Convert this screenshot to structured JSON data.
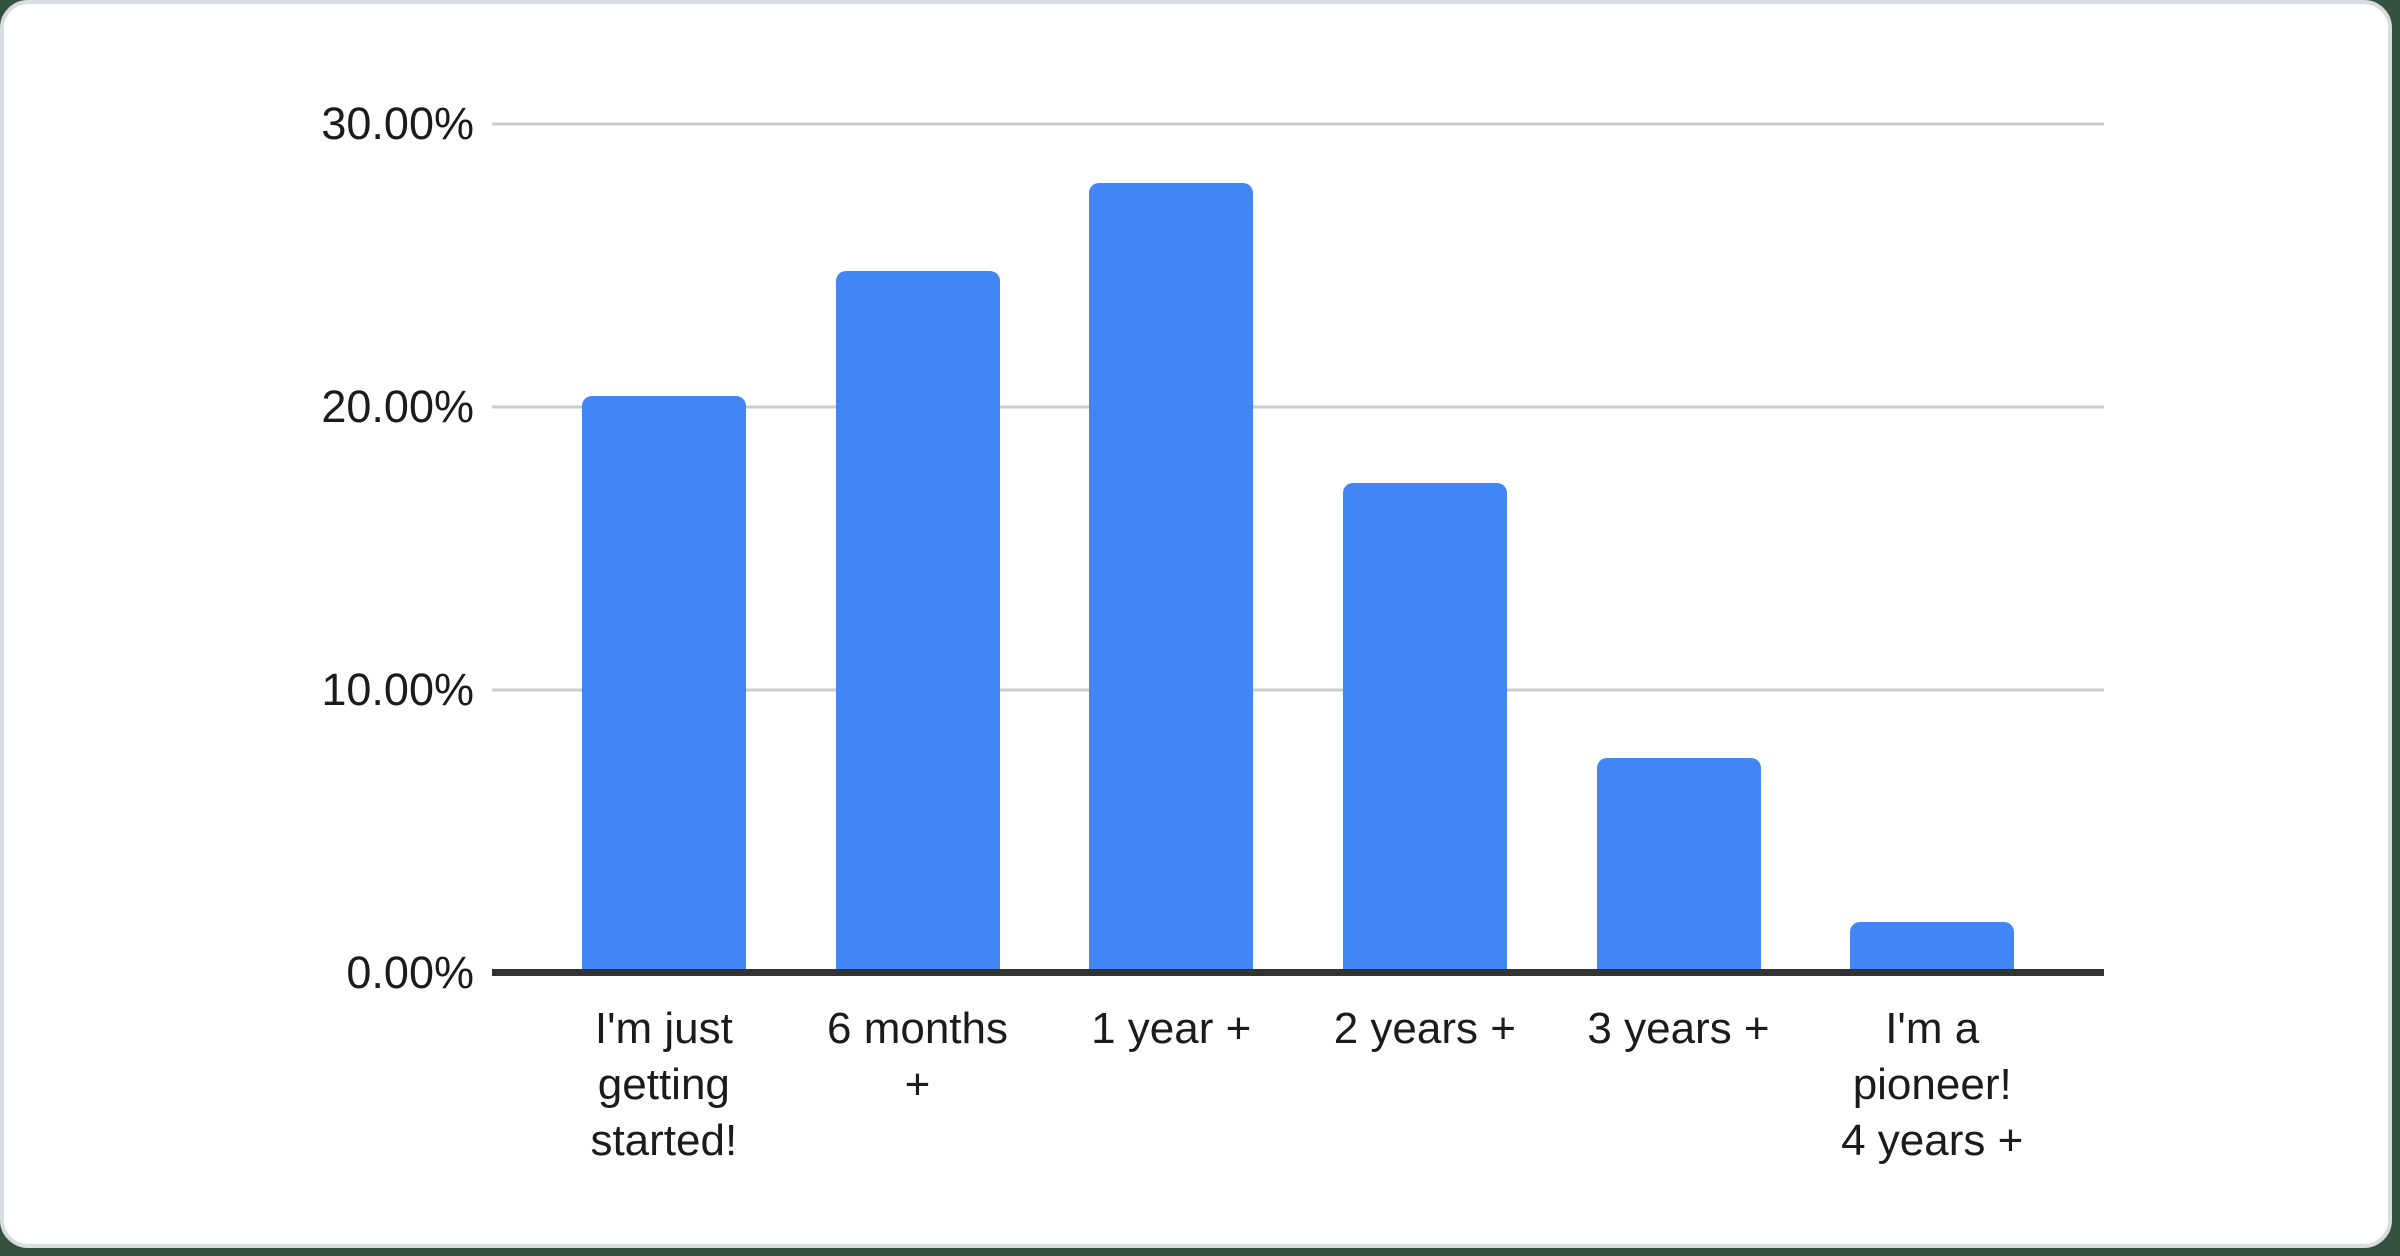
{
  "page": {
    "background_color": "#33523d",
    "card_background": "#ffffff",
    "card_border_color": "#d8dce1"
  },
  "chart_data": {
    "type": "bar",
    "title": "",
    "categories": [
      "I'm just getting started!",
      "6 months +",
      "1 year +",
      "2 years +",
      "3 years +",
      "I'm a pioneer! 4 years +"
    ],
    "category_lines": [
      [
        "I'm just",
        "getting",
        "started!"
      ],
      [
        "6 months",
        "+"
      ],
      [
        "1 year +"
      ],
      [
        "2 years +"
      ],
      [
        "3 years +"
      ],
      [
        "I'm a",
        "pioneer!",
        "4 years +"
      ]
    ],
    "values": [
      20.4,
      24.8,
      27.9,
      17.3,
      7.6,
      1.8
    ],
    "value_unit": "%",
    "xlabel": "",
    "ylabel": "",
    "ylim": [
      0,
      30
    ],
    "y_ticks": [
      {
        "label": "0.00%",
        "value": 0
      },
      {
        "label": "10.00%",
        "value": 10
      },
      {
        "label": "20.00%",
        "value": 20
      },
      {
        "label": "30.00%",
        "value": 30
      }
    ],
    "grid": true,
    "legend": "none",
    "bar_color": "#4285f4",
    "gridline_color": "#cccccc",
    "axis_line_color": "#333333",
    "label_color": "#1b1b1b"
  }
}
